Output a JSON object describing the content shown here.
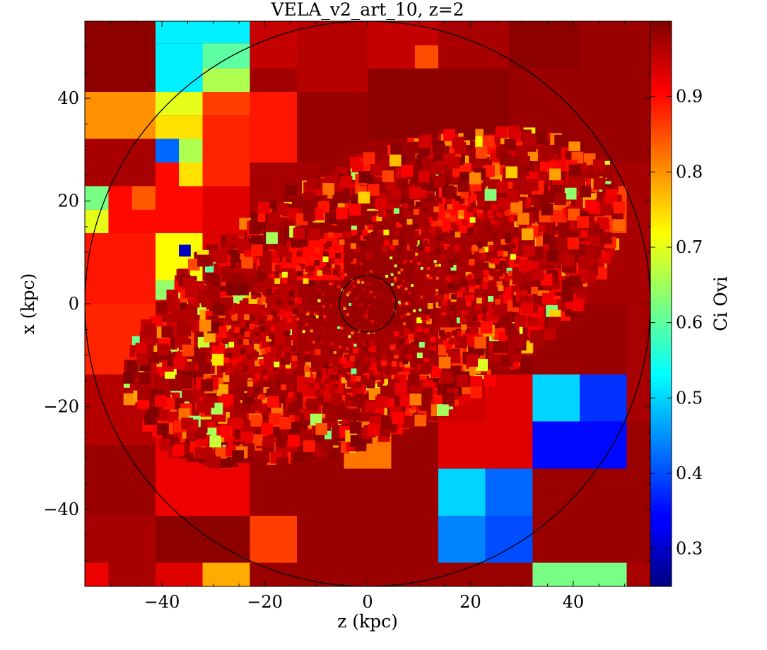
{
  "chart_data": {
    "type": "heatmap",
    "title": "VELA_v2_art_10, z=2",
    "xlabel": "z  (kpc)",
    "ylabel": "x  (kpc)",
    "colorbar_label": "Ci Ovi",
    "xlim": [
      -55,
      55
    ],
    "ylim": [
      -55,
      55
    ],
    "xticks": [
      -40,
      -20,
      0,
      20,
      40
    ],
    "yticks": [
      -40,
      -20,
      0,
      20,
      40
    ],
    "colorbar_range": [
      0.25,
      1.0
    ],
    "colorbar_ticks": [
      0.3,
      0.4,
      0.5,
      0.6,
      0.7,
      0.8,
      0.9
    ],
    "colormap": "jet",
    "grid": false,
    "circles": [
      {
        "center": [
          0,
          0
        ],
        "radius": 55
      },
      {
        "center": [
          0,
          0
        ],
        "radius": 5.5
      }
    ],
    "cells": [
      {
        "x": [
          -55,
          -41.25
        ],
        "y": [
          41.25,
          55
        ],
        "v": 0.99
      },
      {
        "x": [
          -41.25,
          -22.9
        ],
        "y": [
          50.7,
          55
        ],
        "v": 0.52
      },
      {
        "x": [
          -41.25,
          -32.1
        ],
        "y": [
          41.25,
          50.7
        ],
        "v": 0.52
      },
      {
        "x": [
          -32.1,
          -22.9
        ],
        "y": [
          45.8,
          50.7
        ],
        "v": 0.6
      },
      {
        "x": [
          -32.1,
          -22.9
        ],
        "y": [
          41.25,
          45.8
        ],
        "v": 0.66
      },
      {
        "x": [
          -55,
          -41.25
        ],
        "y": [
          32.1,
          41.25
        ],
        "v": 0.8
      },
      {
        "x": [
          -41.25,
          -32.1
        ],
        "y": [
          36.7,
          41.25
        ],
        "v": 0.7
      },
      {
        "x": [
          -41.25,
          -32.1
        ],
        "y": [
          32.1,
          36.7
        ],
        "v": 0.74
      },
      {
        "x": [
          -41.25,
          -36.7
        ],
        "y": [
          27.5,
          32.1
        ],
        "v": 0.42
      },
      {
        "x": [
          -36.7,
          -32.1
        ],
        "y": [
          27.5,
          32.1
        ],
        "v": 0.66
      },
      {
        "x": [
          -32.1,
          -22.9
        ],
        "y": [
          36.7,
          41.25
        ],
        "v": 0.86
      },
      {
        "x": [
          -22.9,
          -13.75
        ],
        "y": [
          45.8,
          55
        ],
        "v": 0.95
      },
      {
        "x": [
          -13.75,
          0
        ],
        "y": [
          41.25,
          55
        ],
        "v": 0.96
      },
      {
        "x": [
          0,
          13.75
        ],
        "y": [
          45.8,
          55
        ],
        "v": 0.95
      },
      {
        "x": [
          9.2,
          13.75
        ],
        "y": [
          45.8,
          50.3
        ],
        "v": 0.85
      },
      {
        "x": [
          13.75,
          27.5
        ],
        "y": [
          45.8,
          55
        ],
        "v": 0.97
      },
      {
        "x": [
          27.5,
          41.25
        ],
        "y": [
          45.8,
          55
        ],
        "v": 0.99
      },
      {
        "x": [
          41.25,
          55
        ],
        "y": [
          41.25,
          55
        ],
        "v": 0.98
      },
      {
        "x": [
          27.5,
          41.25
        ],
        "y": [
          41.25,
          45.8
        ],
        "v": 0.98
      },
      {
        "x": [
          0,
          27.5
        ],
        "y": [
          32.1,
          45.8
        ],
        "v": 0.99
      },
      {
        "x": [
          27.5,
          55
        ],
        "y": [
          27.5,
          41.25
        ],
        "v": 0.98
      },
      {
        "x": [
          -55,
          -41.25
        ],
        "y": [
          22.9,
          32.1
        ],
        "v": 0.97
      },
      {
        "x": [
          -55,
          -50.4
        ],
        "y": [
          18.3,
          22.9
        ],
        "v": 0.62
      },
      {
        "x": [
          -55,
          -50.4
        ],
        "y": [
          13.75,
          18.3
        ],
        "v": 0.7
      },
      {
        "x": [
          -50.4,
          -41.25
        ],
        "y": [
          13.75,
          22.9
        ],
        "v": 0.9
      },
      {
        "x": [
          -45.8,
          -41.25
        ],
        "y": [
          18.3,
          22.9
        ],
        "v": 0.84
      },
      {
        "x": [
          -55,
          -41.25
        ],
        "y": [
          0,
          13.75
        ],
        "v": 0.89
      },
      {
        "x": [
          -55,
          -41.25
        ],
        "y": [
          -13.75,
          0
        ],
        "v": 0.88
      },
      {
        "x": [
          -41.25,
          -32.1
        ],
        "y": [
          0,
          13.75
        ],
        "v": 0.72
      },
      {
        "x": [
          -36.7,
          -34.4
        ],
        "y": [
          9.2,
          11.5
        ],
        "v": 0.3
      },
      {
        "x": [
          -41.25,
          -36.7
        ],
        "y": [
          0,
          4.6
        ],
        "v": 0.64
      },
      {
        "x": [
          -41.25,
          -32.1
        ],
        "y": [
          13.75,
          27.5
        ],
        "v": 0.9
      },
      {
        "x": [
          -36.7,
          -32.1
        ],
        "y": [
          22.9,
          27.5
        ],
        "v": 0.74
      },
      {
        "x": [
          -32.1,
          -27.5
        ],
        "y": [
          18.3,
          22.9
        ],
        "v": 0.78
      },
      {
        "x": [
          -32.1,
          -22.9
        ],
        "y": [
          22.9,
          36.7
        ],
        "v": 0.88
      },
      {
        "x": [
          -22.9,
          -13.75
        ],
        "y": [
          27.5,
          41.25
        ],
        "v": 0.89
      },
      {
        "x": [
          -13.75,
          0
        ],
        "y": [
          27.5,
          41.25
        ],
        "v": 0.98
      },
      {
        "x": [
          -32.1,
          -22.9
        ],
        "y": [
          9.2,
          22.9
        ],
        "v": 0.93
      },
      {
        "x": [
          -22.9,
          -9.2
        ],
        "y": [
          13.75,
          27.5
        ],
        "v": 0.97
      },
      {
        "x": [
          -9.2,
          9.2
        ],
        "y": [
          13.75,
          27.5
        ],
        "v": 0.98
      },
      {
        "x": [
          9.2,
          20.6
        ],
        "y": [
          13.75,
          27.5
        ],
        "v": 0.97
      },
      {
        "x": [
          13.75,
          20.6
        ],
        "y": [
          13.75,
          22.9
        ],
        "v": 0.9
      },
      {
        "x": [
          20.6,
          41.25
        ],
        "y": [
          13.75,
          27.5
        ],
        "v": 0.97
      },
      {
        "x": [
          41.25,
          50.4
        ],
        "y": [
          13.75,
          22.9
        ],
        "v": 0.86
      },
      {
        "x": [
          50.4,
          55
        ],
        "y": [
          13.75,
          27.5
        ],
        "v": 0.97
      },
      {
        "x": [
          41.25,
          50.4
        ],
        "y": [
          22.9,
          27.5
        ],
        "v": 0.97
      },
      {
        "x": [
          -32.1,
          -13.75
        ],
        "y": [
          0,
          9.2
        ],
        "v": 0.96
      },
      {
        "x": [
          -27.5,
          -20.6
        ],
        "y": [
          -2.3,
          2.3
        ],
        "v": 0.76
      },
      {
        "x": [
          -18.3,
          -13.75
        ],
        "y": [
          6.9,
          11.5
        ],
        "v": 0.9
      },
      {
        "x": [
          -13.75,
          -4.6
        ],
        "y": [
          4.6,
          13.75
        ],
        "v": 0.9
      },
      {
        "x": [
          -4.6,
          9.2
        ],
        "y": [
          -9.2,
          9.2
        ],
        "v": 0.98
      },
      {
        "x": [
          9.2,
          13.75
        ],
        "y": [
          0,
          13.75
        ],
        "v": 0.97
      },
      {
        "x": [
          13.75,
          27.5
        ],
        "y": [
          -4.6,
          13.75
        ],
        "v": 0.97
      },
      {
        "x": [
          27.5,
          32.1
        ],
        "y": [
          -4.6,
          9.2
        ],
        "v": 0.9
      },
      {
        "x": [
          32.1,
          41.25
        ],
        "y": [
          0,
          13.75
        ],
        "v": 0.98
      },
      {
        "x": [
          41.25,
          55
        ],
        "y": [
          0,
          13.75
        ],
        "v": 0.97
      },
      {
        "x": [
          -13.75,
          13.75
        ],
        "y": [
          -13.75,
          -4.6
        ],
        "v": 0.97
      },
      {
        "x": [
          13.75,
          22.9
        ],
        "y": [
          -13.75,
          -4.6
        ],
        "v": 0.86
      },
      {
        "x": [
          22.9,
          32.1
        ],
        "y": [
          -13.75,
          -4.6
        ],
        "v": 0.99
      },
      {
        "x": [
          32.1,
          55
        ],
        "y": [
          -13.75,
          0
        ],
        "v": 0.98
      },
      {
        "x": [
          -41.25,
          -13.75
        ],
        "y": [
          -13.75,
          0
        ],
        "v": 0.95
      },
      {
        "x": [
          -55,
          -41.25
        ],
        "y": [
          -27.5,
          -13.75
        ],
        "v": 0.96
      },
      {
        "x": [
          -41.25,
          -22.9
        ],
        "y": [
          -22.9,
          -13.75
        ],
        "v": 0.97
      },
      {
        "x": [
          -22.9,
          -13.75
        ],
        "y": [
          -22.9,
          -18.3
        ],
        "v": 0.88
      },
      {
        "x": [
          -13.75,
          -4.6
        ],
        "y": [
          -22.9,
          -13.75
        ],
        "v": 0.93
      },
      {
        "x": [
          -4.6,
          4.6
        ],
        "y": [
          -22.9,
          -13.75
        ],
        "v": 0.97
      },
      {
        "x": [
          4.6,
          13.75
        ],
        "y": [
          -22.9,
          -13.75
        ],
        "v": 0.85
      },
      {
        "x": [
          13.75,
          22.9
        ],
        "y": [
          -22.9,
          -13.75
        ],
        "v": 0.94
      },
      {
        "x": [
          22.9,
          32.1
        ],
        "y": [
          -22.9,
          -13.75
        ],
        "v": 0.93
      },
      {
        "x": [
          32.1,
          41.25
        ],
        "y": [
          -22.9,
          -13.75
        ],
        "v": 0.5
      },
      {
        "x": [
          41.25,
          50.4
        ],
        "y": [
          -22.9,
          -13.75
        ],
        "v": 0.38
      },
      {
        "x": [
          50.4,
          55
        ],
        "y": [
          -22.9,
          0
        ],
        "v": 0.97
      },
      {
        "x": [
          -55,
          -41.25
        ],
        "y": [
          -41.25,
          -27.5
        ],
        "v": 0.98
      },
      {
        "x": [
          -41.25,
          -22.9
        ],
        "y": [
          -41.25,
          -22.9
        ],
        "v": 0.92
      },
      {
        "x": [
          -22.9,
          -4.6
        ],
        "y": [
          -32.1,
          -22.9
        ],
        "v": 0.98
      },
      {
        "x": [
          -4.6,
          4.6
        ],
        "y": [
          -32.1,
          -22.9
        ],
        "v": 0.82
      },
      {
        "x": [
          4.6,
          13.75
        ],
        "y": [
          -32.1,
          -22.9
        ],
        "v": 0.98
      },
      {
        "x": [
          13.75,
          32.1
        ],
        "y": [
          -32.1,
          -22.9
        ],
        "v": 0.93
      },
      {
        "x": [
          32.1,
          50.4
        ],
        "y": [
          -32.1,
          -22.9
        ],
        "v": 0.35
      },
      {
        "x": [
          50.4,
          55
        ],
        "y": [
          -41.25,
          -22.9
        ],
        "v": 0.98
      },
      {
        "x": [
          -22.9,
          13.75
        ],
        "y": [
          -41.25,
          -32.1
        ],
        "v": 0.98
      },
      {
        "x": [
          13.75,
          22.9
        ],
        "y": [
          -41.25,
          -32.1
        ],
        "v": 0.5
      },
      {
        "x": [
          22.9,
          32.1
        ],
        "y": [
          -41.25,
          -32.1
        ],
        "v": 0.42
      },
      {
        "x": [
          32.1,
          50.4
        ],
        "y": [
          -41.25,
          -32.1
        ],
        "v": 0.98
      },
      {
        "x": [
          -55,
          -41.25
        ],
        "y": [
          -50.4,
          -41.25
        ],
        "v": 0.97
      },
      {
        "x": [
          -41.25,
          -22.9
        ],
        "y": [
          -50.4,
          -41.25
        ],
        "v": 0.99
      },
      {
        "x": [
          -22.9,
          -13.75
        ],
        "y": [
          -50.4,
          -41.25
        ],
        "v": 0.86
      },
      {
        "x": [
          -13.75,
          13.75
        ],
        "y": [
          -50.4,
          -41.25
        ],
        "v": 0.98
      },
      {
        "x": [
          13.75,
          22.9
        ],
        "y": [
          -50.4,
          -41.25
        ],
        "v": 0.44
      },
      {
        "x": [
          22.9,
          32.1
        ],
        "y": [
          -50.4,
          -41.25
        ],
        "v": 0.4
      },
      {
        "x": [
          32.1,
          55
        ],
        "y": [
          -50.4,
          -41.25
        ],
        "v": 0.98
      },
      {
        "x": [
          -55,
          -50.4
        ],
        "y": [
          -55,
          -50.4
        ],
        "v": 0.92
      },
      {
        "x": [
          -50.4,
          -41.25
        ],
        "y": [
          -55,
          -50.4
        ],
        "v": 0.97
      },
      {
        "x": [
          -41.25,
          -32.1
        ],
        "y": [
          -55,
          -50.4
        ],
        "v": 0.93
      },
      {
        "x": [
          -32.1,
          -22.9
        ],
        "y": [
          -55,
          -50.4
        ],
        "v": 0.78
      },
      {
        "x": [
          -22.9,
          32.1
        ],
        "y": [
          -55,
          -50.4
        ],
        "v": 0.98
      },
      {
        "x": [
          32.1,
          50.4
        ],
        "y": [
          -55,
          -50.4
        ],
        "v": 0.62
      },
      {
        "x": [
          50.4,
          55
        ],
        "y": [
          -55,
          -50.4
        ],
        "v": 0.97
      }
    ]
  }
}
